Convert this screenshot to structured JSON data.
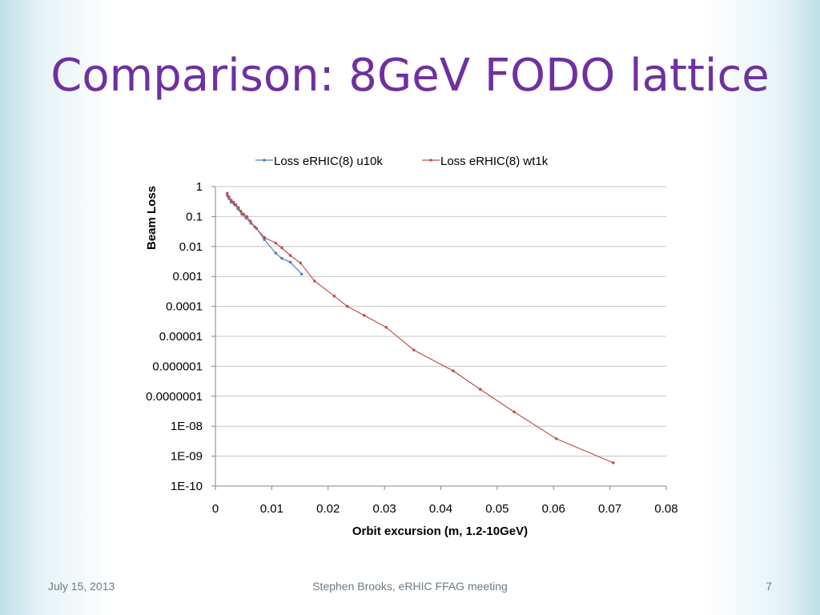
{
  "slide": {
    "title": "Comparison: 8GeV FODO lattice",
    "footer_date": "July 15, 2013",
    "footer_center": "Stephen Brooks, eRHIC FFAG meeting",
    "page_number": "7"
  },
  "chart_data": {
    "type": "line",
    "title": "",
    "xlabel": "Orbit excursion (m, 1.2-10GeV)",
    "ylabel": "Beam Loss",
    "xlim": [
      0,
      0.08
    ],
    "x_ticks": [
      0,
      0.01,
      0.02,
      0.03,
      0.04,
      0.05,
      0.06,
      0.07,
      0.08
    ],
    "x_tick_labels": [
      "0",
      "0.01",
      "0.02",
      "0.03",
      "0.04",
      "0.05",
      "0.06",
      "0.07",
      "0.08"
    ],
    "y_scale": "log",
    "ylim": [
      1e-10,
      1
    ],
    "y_ticks": [
      1,
      0.1,
      0.01,
      0.001,
      0.0001,
      1e-05,
      1e-06,
      1e-07,
      1e-08,
      1e-09,
      1e-10
    ],
    "y_tick_labels": [
      "1",
      "0.1",
      "0.01",
      "0.001",
      "0.0001",
      "0.00001",
      "0.000001",
      "0.0000001",
      "1E-08",
      "1E-09",
      "1E-10"
    ],
    "grid": "horizontal",
    "legend_position": "top",
    "series": [
      {
        "name": "Loss eRHIC(8) u10k",
        "color": "#4f81bd",
        "x": [
          0.0021,
          0.0024,
          0.0028,
          0.0034,
          0.004,
          0.0047,
          0.0054,
          0.0063,
          0.0073,
          0.0087,
          0.0107,
          0.0118,
          0.0133,
          0.0153
        ],
        "y": [
          0.5,
          0.4,
          0.3,
          0.25,
          0.18,
          0.12,
          0.09,
          0.06,
          0.04,
          0.017,
          0.006,
          0.004,
          0.003,
          0.0012
        ]
      },
      {
        "name": "Loss eRHIC(8) wt1k",
        "color": "#c0504d",
        "x": [
          0.0021,
          0.0024,
          0.0028,
          0.0032,
          0.0036,
          0.0041,
          0.0045,
          0.005,
          0.0056,
          0.0062,
          0.007,
          0.0087,
          0.0107,
          0.0118,
          0.0133,
          0.0151,
          0.0176,
          0.0211,
          0.0234,
          0.0264,
          0.0303,
          0.0352,
          0.0422,
          0.047,
          0.053,
          0.0605,
          0.0706
        ],
        "y": [
          0.6,
          0.45,
          0.35,
          0.3,
          0.25,
          0.2,
          0.15,
          0.12,
          0.1,
          0.07,
          0.045,
          0.02,
          0.013,
          0.009,
          0.005,
          0.0028,
          0.0007,
          0.00022,
          0.0001,
          5e-05,
          2e-05,
          3.5e-06,
          7e-07,
          1.7e-07,
          3e-08,
          3.8e-09,
          6e-10
        ]
      }
    ]
  }
}
